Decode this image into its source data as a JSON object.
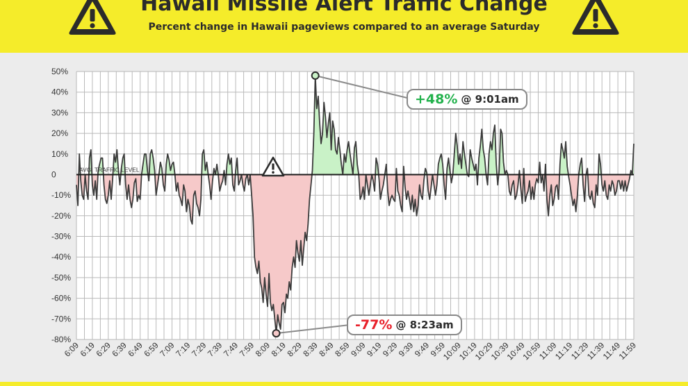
{
  "header": {
    "title": "Hawaii Missile Alert Traffic Change",
    "subtitle": "Percent change in Hawaii pageviews compared to an average Saturday"
  },
  "colors": {
    "accent_yellow": "#f5ec2a",
    "positive_fill": "#c9f2c7",
    "negative_fill": "#f6c9c9",
    "line": "#3a3a3a"
  },
  "icons": [
    "warning-icon"
  ],
  "callouts": {
    "peak": {
      "value": "+48%",
      "time": "@ 9:01am"
    },
    "trough": {
      "value": "-77%",
      "time": "@ 8:23am"
    }
  },
  "chart_data": {
    "type": "area",
    "title": "Hawaii Missile Alert Traffic Change",
    "subtitle": "Percent change in Hawaii pageviews compared to an average Saturday",
    "baseline_label": "AVG. TRAFFIC LEVEL",
    "event_marker": {
      "time": "8:07",
      "icon": "warning-icon"
    },
    "ylim": [
      -80,
      50
    ],
    "yticks": [
      50,
      40,
      30,
      20,
      10,
      0,
      -10,
      -20,
      -30,
      -40,
      -50,
      -60,
      -70,
      -80
    ],
    "ytick_labels": [
      "50%",
      "40%",
      "30%",
      "20%",
      "10%",
      "0",
      "-10%",
      "-20%",
      "-30%",
      "-40%",
      "-50%",
      "-60%",
      "-70%",
      "-80%"
    ],
    "xtick_labels": [
      "6:09",
      "6:19",
      "6:29",
      "6:39",
      "6:49",
      "6:59",
      "7:09",
      "7:19",
      "7:29",
      "7:39",
      "7:49",
      "7:59",
      "8:09",
      "8:19",
      "8:29",
      "8:39",
      "8:49",
      "8:59",
      "9:09",
      "9:19",
      "9:29",
      "9:39",
      "9:49",
      "9:59",
      "10:09",
      "10:19",
      "10:29",
      "10:39",
      "10:49",
      "10:59",
      "11:09",
      "11:19",
      "11:29",
      "11:39",
      "11:49",
      "11:59"
    ],
    "start_time": "6:09",
    "grid": true,
    "series": [
      {
        "values": [
          -5,
          -15,
          10,
          -3,
          -10,
          -12,
          0,
          -8,
          -12,
          8,
          12,
          -5,
          -10,
          -3,
          -12,
          2,
          5,
          8,
          8,
          -5,
          -12,
          -14,
          -10,
          -3,
          -12,
          -2,
          10,
          6,
          12,
          2,
          -5,
          3,
          8,
          10,
          -5,
          -12,
          -5,
          -12,
          -16,
          -12,
          -4,
          -2,
          -13,
          -10,
          -12,
          0,
          5,
          10,
          10,
          2,
          -3,
          10,
          12,
          8,
          2,
          -10,
          -5,
          0,
          6,
          3,
          -5,
          -8,
          5,
          10,
          7,
          2,
          5,
          6,
          0,
          -8,
          -4,
          -10,
          -12,
          -15,
          -5,
          -8,
          -18,
          -12,
          -15,
          -22,
          -24,
          -10,
          -8,
          -14,
          -16,
          -20,
          -12,
          10,
          12,
          2,
          6,
          0,
          -5,
          -12,
          -3,
          3,
          0,
          5,
          0,
          -8,
          -5,
          -3,
          2,
          -5,
          5,
          10,
          5,
          8,
          -5,
          -8,
          2,
          8,
          -5,
          -3,
          0,
          -5,
          -8,
          -2,
          0,
          -5,
          0,
          -10,
          -20,
          -40,
          -45,
          -48,
          -42,
          -52,
          -55,
          -62,
          -50,
          -58,
          -64,
          -48,
          -62,
          -66,
          -63,
          -70,
          -77,
          -68,
          -72,
          -75,
          -63,
          -62,
          -67,
          -58,
          -60,
          -52,
          -56,
          -45,
          -40,
          -45,
          -32,
          -38,
          -42,
          -32,
          -44,
          -36,
          -28,
          -32,
          -24,
          -12,
          -5,
          2,
          20,
          48,
          32,
          38,
          25,
          15,
          20,
          35,
          28,
          18,
          25,
          30,
          12,
          26,
          22,
          12,
          10,
          18,
          12,
          5,
          0,
          10,
          6,
          12,
          16,
          10,
          5,
          0,
          13,
          16,
          5,
          0,
          -12,
          -10,
          -6,
          -12,
          0,
          -5,
          -10,
          -5,
          0,
          -3,
          -8,
          8,
          5,
          -2,
          -12,
          -8,
          -5,
          0,
          5,
          -8,
          -15,
          -12,
          -10,
          -12,
          -13,
          3,
          -8,
          -10,
          -15,
          -18,
          4,
          -6,
          -12,
          -8,
          -12,
          -17,
          -10,
          -18,
          -12,
          -20,
          -15,
          -5,
          -10,
          -12,
          -3,
          3,
          1,
          -8,
          -12,
          -6,
          0,
          -5,
          -10,
          -5,
          5,
          8,
          10,
          5,
          -5,
          -12,
          3,
          8,
          2,
          -4,
          0,
          10,
          20,
          14,
          5,
          10,
          3,
          16,
          10,
          5,
          0,
          -1,
          12,
          8,
          5,
          2,
          5,
          -5,
          8,
          14,
          22,
          12,
          8,
          0,
          -5,
          10,
          16,
          12,
          20,
          24,
          5,
          -5,
          2,
          22,
          20,
          6,
          0,
          2,
          0,
          -8,
          -10,
          -5,
          -3,
          -12,
          -10,
          -5,
          2,
          -7,
          -14,
          3,
          -13,
          -10,
          -8,
          -3,
          -12,
          -6,
          -12,
          -5,
          -2,
          -4,
          6,
          -4,
          0,
          -8,
          5,
          -12,
          -20,
          -10,
          -5,
          -15,
          -12,
          -6,
          -5,
          -12,
          5,
          15,
          12,
          8,
          16,
          4,
          -1,
          -5,
          -10,
          -15,
          -12,
          -18,
          -10,
          0,
          5,
          8,
          -5,
          -13,
          0,
          3,
          -10,
          -12,
          -8,
          -14,
          -16,
          -5,
          -10,
          10,
          5,
          -5,
          -8,
          -3,
          -10,
          -12,
          -5,
          -8,
          -3,
          -5,
          -10,
          -8,
          -3,
          -3,
          -7,
          -3,
          -8,
          -3,
          -8,
          -5,
          -2,
          2,
          0,
          15
        ]
      }
    ]
  }
}
